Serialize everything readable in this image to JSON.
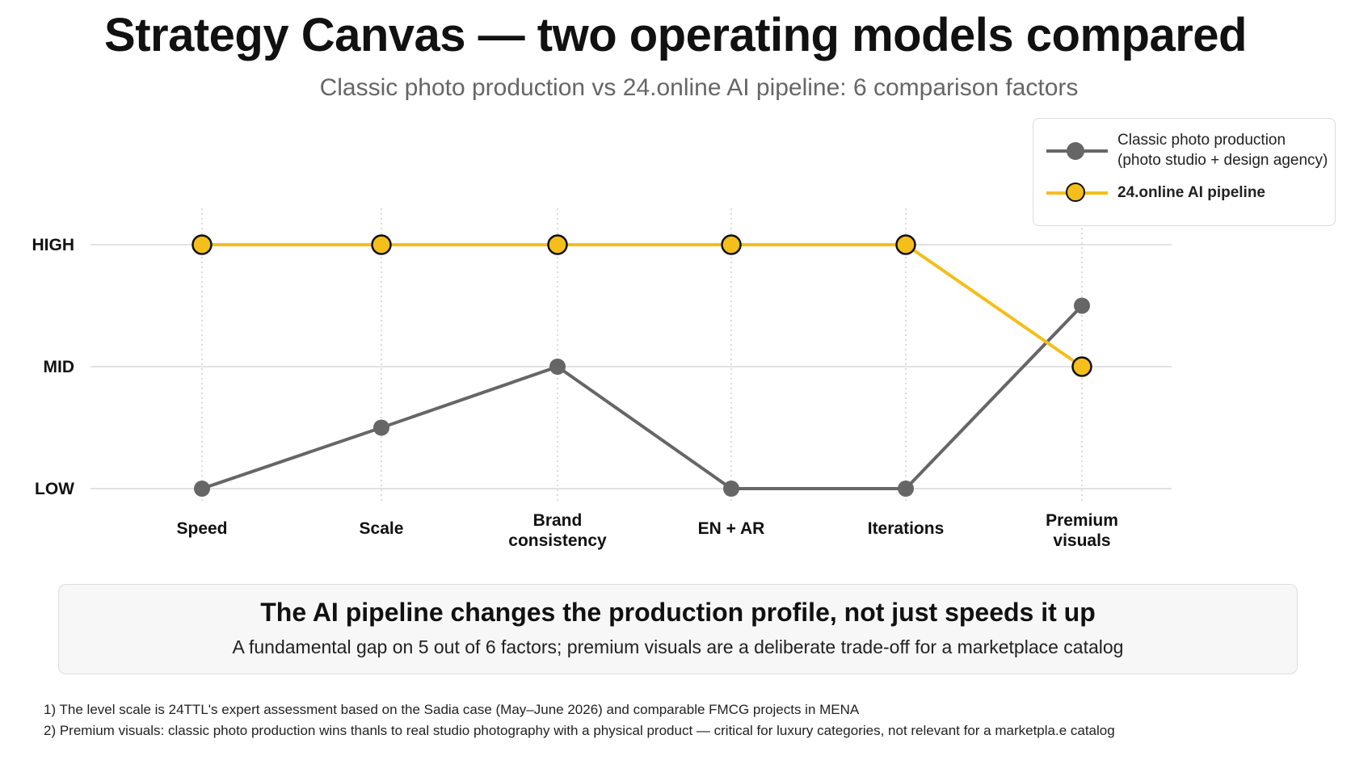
{
  "header": {
    "title": "Strategy Canvas — two operating models compared",
    "subtitle": "Classic photo production vs 24.online AI pipeline: 6 comparison factors"
  },
  "legend": {
    "classic_line1": "Classic photo production",
    "classic_line2": "(photo studio + design agency)",
    "ai": "24.online AI pipeline"
  },
  "colors": {
    "classic": "#666666",
    "ai": "#F5BE1B",
    "grid": "#d9d9d9"
  },
  "chart_data": {
    "type": "line",
    "categories": [
      [
        "Speed"
      ],
      [
        "Scale"
      ],
      [
        "Brand",
        "consistency"
      ],
      [
        "EN + AR"
      ],
      [
        "Iterations"
      ],
      [
        "Premium",
        "visuals"
      ]
    ],
    "y_levels": [
      {
        "label": "LOW",
        "value": 0
      },
      {
        "label": "MID",
        "value": 1
      },
      {
        "label": "HIGH",
        "value": 2
      }
    ],
    "ylim": [
      0,
      2
    ],
    "grid": true,
    "legend_position": "top-right",
    "series": [
      {
        "key": "classic",
        "name": "Classic photo production (photo studio + design agency)",
        "values": [
          0,
          0.5,
          1,
          0,
          0,
          1.5
        ]
      },
      {
        "key": "ai",
        "name": "24.online AI pipeline",
        "values": [
          2,
          2,
          2,
          2,
          2,
          1
        ]
      }
    ]
  },
  "callout": {
    "headline": "The AI pipeline changes the production profile, not just speeds it up",
    "subline": "A fundamental gap on 5 out of 6 factors; premium visuals are a deliberate trade-off for a marketplace catalog"
  },
  "footnotes": [
    "1) The level scale is 24TTL's expert assessment based on the Sadia case (May–June 2026) and comparable FMCG projects in MENA",
    "2) Premium visuals: classic photo production wins thanls to real studio photography with a physical product — critical for luxury categories, not relevant for a marketpla.e catalog"
  ]
}
